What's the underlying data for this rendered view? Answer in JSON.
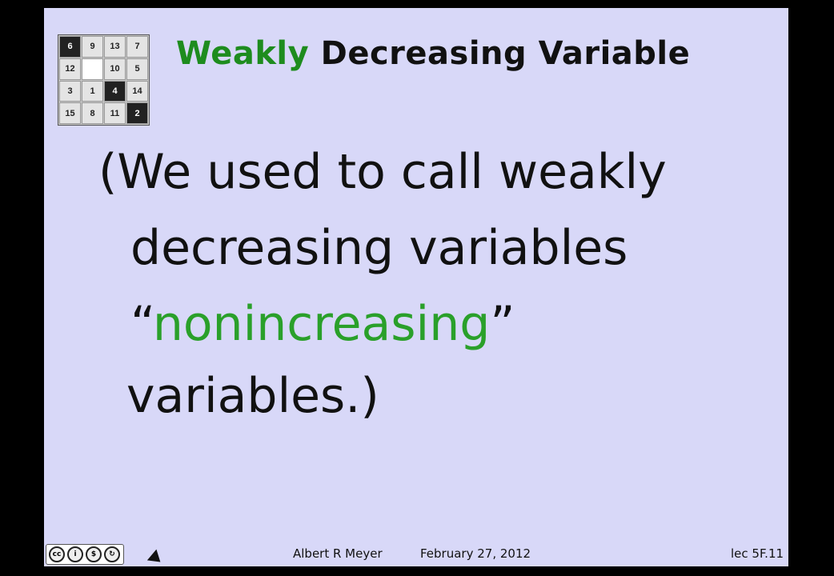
{
  "puzzle": {
    "tiles": [
      "6",
      "9",
      "13",
      "7",
      "12",
      "",
      "10",
      "5",
      "3",
      "1",
      "4",
      "14",
      "15",
      "8",
      "11",
      "2"
    ],
    "dark_indices": [
      0,
      10,
      15
    ],
    "blank_index": 5
  },
  "title": {
    "highlight": "Weakly",
    "rest": "Decreasing Variable"
  },
  "body": {
    "line1": "(We used to call weakly",
    "line2": "decreasing variables",
    "line3_open_quote": "“",
    "line3_word": "nonincreasing",
    "line3_close_quote": "”",
    "line4": "variables.)"
  },
  "footer": {
    "author": "Albert R Meyer",
    "date": "February 27, 2012",
    "lecture": "lec 5F.11"
  },
  "license_icons": [
    "cc-icon",
    "by-icon",
    "nc-icon",
    "sa-icon"
  ],
  "colors": {
    "background": "#d8d8f8",
    "highlight_green": "#2aa02a"
  }
}
